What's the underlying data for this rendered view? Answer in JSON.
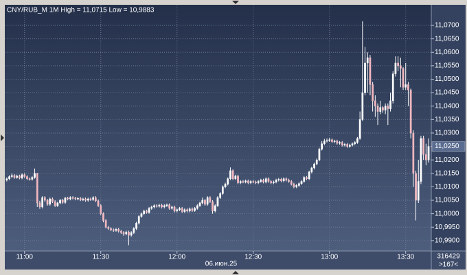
{
  "chart_data": {
    "type": "candlestick",
    "title": "CNY/RUB_M 1M High = 11,0715 Low = 10,9883",
    "date_label": "06.июн.25",
    "counter_label": "316429",
    "bars_label": ">167<",
    "last_price": {
      "value": 11.025,
      "label": "11,0250"
    },
    "up_color": "#ffffff",
    "down_color": "#f2b8c0",
    "xlim": [
      -0.5,
      166.8
    ],
    "xticks": [
      {
        "value": 7,
        "label": "11:00"
      },
      {
        "value": 37,
        "label": "11:30"
      },
      {
        "value": 67,
        "label": "12:00"
      },
      {
        "value": 97,
        "label": "12:30"
      },
      {
        "value": 127,
        "label": "13:00"
      },
      {
        "value": 157,
        "label": "13:30"
      }
    ],
    "ylim": [
      10.9864,
      11.0774
    ],
    "yticks": [
      {
        "value": 10.99,
        "label": "10,9900"
      },
      {
        "value": 10.995,
        "label": "10,9950"
      },
      {
        "value": 11.0,
        "label": "11,0000"
      },
      {
        "value": 11.005,
        "label": "11,0050"
      },
      {
        "value": 11.01,
        "label": "11,0100"
      },
      {
        "value": 11.015,
        "label": "11,0150"
      },
      {
        "value": 11.02,
        "label": "11,0200"
      },
      {
        "value": 11.025,
        "label": "11,0250"
      },
      {
        "value": 11.03,
        "label": "11,0300"
      },
      {
        "value": 11.035,
        "label": "11,0350"
      },
      {
        "value": 11.04,
        "label": "11,0400"
      },
      {
        "value": 11.045,
        "label": "11,0450"
      },
      {
        "value": 11.05,
        "label": "11,0500"
      },
      {
        "value": 11.055,
        "label": "11,0550"
      },
      {
        "value": 11.06,
        "label": "11,0600"
      },
      {
        "value": 11.065,
        "label": "11,0650"
      },
      {
        "value": 11.07,
        "label": "11,0700"
      }
    ],
    "grid": true,
    "open": [
      11.0125,
      11.013,
      11.0138,
      11.0142,
      11.0135,
      11.014,
      11.0133,
      11.0145,
      11.0138,
      11.013,
      11.0128,
      11.0135,
      11.015,
      11.004,
      11.0025,
      11.006,
      11.005,
      11.0035,
      11.0055,
      11.0045,
      11.003,
      11.004,
      11.005,
      11.0042,
      11.0058,
      11.0055,
      11.006,
      11.0058,
      11.0055,
      11.0057,
      11.0052,
      11.0055,
      11.005,
      11.0055,
      11.0053,
      11.006,
      11.0048,
      11.003,
      11.0,
      10.9975,
      10.995,
      10.9945,
      10.994,
      10.9938,
      10.9942,
      10.9935,
      10.993,
      10.9925,
      10.9932,
      10.992,
      10.993,
      10.9945,
      10.9965,
      10.999,
      11.0,
      11.001,
      11.0005,
      11.002,
      11.0025,
      11.003,
      11.0028,
      11.0032,
      11.0025,
      11.003,
      11.0033,
      11.002,
      11.0025,
      11.001,
      11.0015,
      11.002,
      11.0008,
      11.0015,
      11.001,
      11.0018,
      11.0012,
      11.002,
      11.003,
      11.004,
      11.005,
      11.0035,
      11.006,
      11.0045,
      11.001,
      11.003,
      11.006,
      11.0075,
      11.01,
      11.011,
      11.013,
      11.016,
      11.013,
      11.014,
      11.0115,
      11.012,
      11.0118,
      11.0122,
      11.0115,
      11.012,
      11.0118,
      11.0115,
      11.012,
      11.0125,
      11.0118,
      11.013,
      11.012,
      11.0115,
      11.0118,
      11.0125,
      11.0128,
      11.0122,
      11.013,
      11.0125,
      11.012,
      11.011,
      11.01,
      11.0105,
      11.0112,
      11.012,
      11.0135,
      11.013,
      11.0155,
      11.017,
      11.0185,
      11.02,
      11.024,
      11.026,
      11.027,
      11.0272,
      11.0275,
      11.0268,
      11.027,
      11.0262,
      11.0265,
      11.0255,
      11.0258,
      11.025,
      11.0255,
      11.026,
      11.0265,
      11.028,
      11.035,
      11.045,
      11.056,
      11.058,
      11.048,
      11.042,
      11.04,
      11.038,
      11.0395,
      11.0385,
      11.04,
      11.039,
      11.042,
      11.052,
      11.056,
      11.055,
      11.054,
      11.047,
      11.048,
      11.046,
      11.03,
      11.015,
      11.005,
      11.012,
      11.028,
      11.022,
      11.02
    ],
    "high": [
      11.0135,
      11.0143,
      11.015,
      11.0147,
      11.0145,
      11.0145,
      11.015,
      11.015,
      11.0143,
      11.0135,
      11.014,
      11.0168,
      11.0152,
      11.0048,
      11.0065,
      11.0065,
      11.0055,
      11.006,
      11.006,
      11.005,
      11.0045,
      11.0055,
      11.0055,
      11.0063,
      11.0063,
      11.0065,
      11.0065,
      11.0063,
      11.0062,
      11.0062,
      11.006,
      11.006,
      11.006,
      11.006,
      11.0065,
      11.0065,
      11.0053,
      11.0035,
      11.0005,
      10.998,
      10.9955,
      10.995,
      10.9945,
      10.9947,
      10.9947,
      10.994,
      10.9935,
      10.9937,
      10.9937,
      10.9935,
      10.995,
      10.997,
      10.9995,
      11.0005,
      11.0015,
      11.0015,
      11.0025,
      11.003,
      11.0035,
      11.0035,
      11.0037,
      11.0037,
      11.0035,
      11.0038,
      11.0038,
      11.003,
      11.003,
      11.002,
      11.0025,
      11.0025,
      11.002,
      11.002,
      11.0023,
      11.0023,
      11.0025,
      11.0035,
      11.0045,
      11.006,
      11.0055,
      11.0065,
      11.0065,
      11.005,
      11.0035,
      11.0065,
      11.008,
      11.0105,
      11.0115,
      11.0135,
      11.0172,
      11.0165,
      11.0145,
      11.0145,
      11.0125,
      11.0125,
      11.0127,
      11.0127,
      11.0125,
      11.0125,
      11.0123,
      11.0125,
      11.013,
      11.013,
      11.0135,
      11.0135,
      11.0125,
      11.0123,
      11.013,
      11.0133,
      11.0133,
      11.0135,
      11.0135,
      11.013,
      11.0125,
      11.0115,
      11.011,
      11.0117,
      11.0125,
      11.014,
      11.014,
      11.016,
      11.0175,
      11.019,
      11.0205,
      11.0245,
      11.027,
      11.0278,
      11.028,
      11.0282,
      11.028,
      11.0275,
      11.0275,
      11.027,
      11.027,
      11.0263,
      11.0263,
      11.026,
      11.0265,
      11.027,
      11.0285,
      11.038,
      11.0715,
      11.062,
      11.06,
      11.059,
      11.049,
      11.044,
      11.041,
      11.042,
      11.04,
      11.041,
      11.041,
      11.045,
      11.053,
      11.0585,
      11.0585,
      11.058,
      11.0545,
      11.056,
      11.049,
      11.0465,
      11.031,
      11.016,
      11.02,
      11.029,
      11.029,
      11.026,
      11.028
    ],
    "low": [
      11.012,
      11.0125,
      11.0133,
      11.013,
      11.013,
      11.0128,
      11.0128,
      11.0133,
      11.0125,
      11.0123,
      11.0123,
      11.013,
      11.0025,
      11.0018,
      11.002,
      11.0045,
      11.003,
      11.003,
      11.004,
      11.0025,
      11.0025,
      11.0035,
      11.0037,
      11.0037,
      11.005,
      11.005,
      11.0053,
      11.005,
      11.005,
      11.0047,
      11.0047,
      11.0045,
      11.0045,
      11.0048,
      11.0048,
      11.0043,
      11.0025,
      10.9995,
      10.9968,
      10.9945,
      10.994,
      10.9935,
      10.9933,
      10.9933,
      10.993,
      10.9925,
      10.9918,
      10.992,
      10.9883,
      10.9915,
      10.9925,
      10.994,
      10.996,
      10.9985,
      10.9995,
      11.0,
      11.0,
      11.0015,
      11.002,
      11.0023,
      11.0023,
      11.002,
      11.002,
      11.0025,
      11.0015,
      11.0015,
      11.0005,
      11.0005,
      11.001,
      11.0003,
      11.0003,
      11.0005,
      11.0005,
      11.0007,
      11.0007,
      11.0015,
      11.0025,
      11.0035,
      11.003,
      11.003,
      11.004,
      11.0,
      11.0005,
      11.0025,
      11.0055,
      11.007,
      11.0095,
      11.0105,
      11.0125,
      11.0125,
      11.0125,
      11.011,
      11.011,
      11.0113,
      11.0113,
      11.011,
      11.011,
      11.0113,
      11.011,
      11.011,
      11.0115,
      11.0113,
      11.0113,
      11.0115,
      11.011,
      11.011,
      11.0113,
      11.012,
      11.0117,
      11.0117,
      11.012,
      11.0115,
      11.0105,
      11.0095,
      11.0095,
      11.01,
      11.0107,
      11.0115,
      11.0125,
      11.0125,
      11.015,
      11.0165,
      11.018,
      11.0195,
      11.0235,
      11.0255,
      11.0265,
      11.0267,
      11.0263,
      11.0263,
      11.0257,
      11.0257,
      11.025,
      11.025,
      11.0245,
      11.0245,
      11.025,
      11.0255,
      11.026,
      11.0275,
      11.0345,
      11.044,
      11.045,
      11.044,
      11.038,
      11.036,
      11.033,
      11.037,
      11.0375,
      11.037,
      11.033,
      11.038,
      11.041,
      11.051,
      11.053,
      11.047,
      11.046,
      11.046,
      11.04,
      11.028,
      11.01,
      10.9975,
      11.004,
      11.011,
      11.02,
      11.018,
      11.019
    ],
    "close": [
      11.013,
      11.0138,
      11.0142,
      11.0135,
      11.014,
      11.0133,
      11.0145,
      11.0138,
      11.013,
      11.0128,
      11.0135,
      11.015,
      11.004,
      11.0025,
      11.006,
      11.005,
      11.0035,
      11.0055,
      11.0045,
      11.003,
      11.004,
      11.005,
      11.0042,
      11.0058,
      11.0055,
      11.006,
      11.0058,
      11.0055,
      11.0057,
      11.0052,
      11.0055,
      11.005,
      11.0055,
      11.0053,
      11.006,
      11.0048,
      11.003,
      11.0,
      10.9975,
      10.995,
      10.9945,
      10.994,
      10.9938,
      10.9942,
      10.9935,
      10.993,
      10.9925,
      10.9932,
      10.992,
      10.993,
      10.9945,
      10.9965,
      10.999,
      11.0,
      11.001,
      11.0005,
      11.002,
      11.0025,
      11.003,
      11.0028,
      11.0032,
      11.0025,
      11.003,
      11.0033,
      11.002,
      11.0025,
      11.001,
      11.0015,
      11.002,
      11.0008,
      11.0015,
      11.001,
      11.0018,
      11.0012,
      11.002,
      11.003,
      11.004,
      11.005,
      11.0035,
      11.006,
      11.0045,
      11.001,
      11.003,
      11.006,
      11.0075,
      11.01,
      11.011,
      11.013,
      11.016,
      11.013,
      11.014,
      11.0115,
      11.012,
      11.0118,
      11.0122,
      11.0115,
      11.012,
      11.0118,
      11.0115,
      11.012,
      11.0125,
      11.0118,
      11.013,
      11.012,
      11.0115,
      11.0118,
      11.0125,
      11.0128,
      11.0122,
      11.013,
      11.0125,
      11.012,
      11.011,
      11.01,
      11.0105,
      11.0112,
      11.012,
      11.0135,
      11.013,
      11.0155,
      11.017,
      11.0185,
      11.02,
      11.024,
      11.026,
      11.027,
      11.0272,
      11.0275,
      11.0268,
      11.027,
      11.0262,
      11.0265,
      11.0255,
      11.0258,
      11.025,
      11.0255,
      11.026,
      11.0265,
      11.028,
      11.035,
      11.045,
      11.056,
      11.058,
      11.048,
      11.042,
      11.04,
      11.038,
      11.0395,
      11.0385,
      11.04,
      11.039,
      11.042,
      11.052,
      11.056,
      11.055,
      11.054,
      11.047,
      11.048,
      11.046,
      11.03,
      11.015,
      11.005,
      11.012,
      11.028,
      11.022,
      11.02,
      11.025
    ]
  }
}
